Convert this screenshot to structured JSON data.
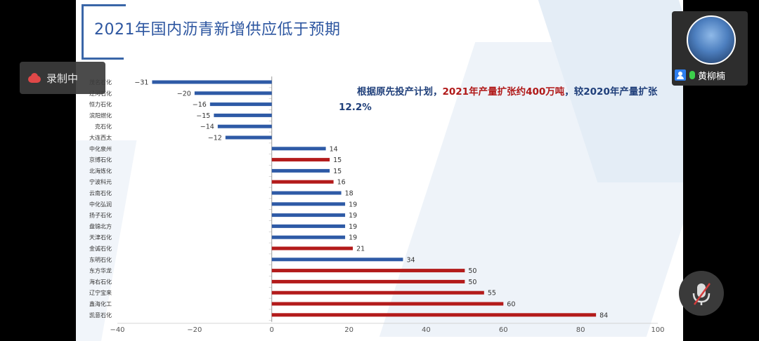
{
  "recording": {
    "label": "录制中"
  },
  "participant": {
    "name": "黄柳楠"
  },
  "slide": {
    "title": "2021年国内沥青新增供应低于预期",
    "note_part1": "根据原先投产计划，",
    "note_part2": "2021年产量扩张约400万吨",
    "note_part3": "，较2020年产量扩张12.2%"
  },
  "colors": {
    "blue": "#2e5aa6",
    "red": "#b31b1b",
    "title": "#2d56a0"
  },
  "chart_data": {
    "type": "bar",
    "orientation": "horizontal",
    "title": "",
    "xlim": [
      -40,
      100
    ],
    "xticks": [
      -40,
      -20,
      0,
      20,
      40,
      60,
      80,
      100
    ],
    "categories": [
      "茂名石化",
      "辽河石化",
      "恒力石化",
      "滨阳燃化",
      "克石化",
      "大连西太",
      "中化泉州",
      "京博石化",
      "北海炼化",
      "宁波科元",
      "云南石化",
      "中化弘润",
      "扬子石化",
      "盘锦北方",
      "天津石化",
      "金诚石化",
      "东明石化",
      "东方华龙",
      "海右石化",
      "辽宁宝来",
      "鑫海化工",
      "凯意石化"
    ],
    "values": [
      -31,
      -20,
      -16,
      -15,
      -14,
      -12,
      14,
      15,
      15,
      16,
      18,
      19,
      19,
      19,
      19,
      21,
      34,
      50,
      50,
      55,
      60,
      84
    ],
    "bar_colors": [
      "blue",
      "blue",
      "blue",
      "blue",
      "blue",
      "blue",
      "blue",
      "red",
      "blue",
      "red",
      "blue",
      "blue",
      "blue",
      "blue",
      "blue",
      "red",
      "blue",
      "red",
      "red",
      "red",
      "red",
      "red"
    ]
  }
}
